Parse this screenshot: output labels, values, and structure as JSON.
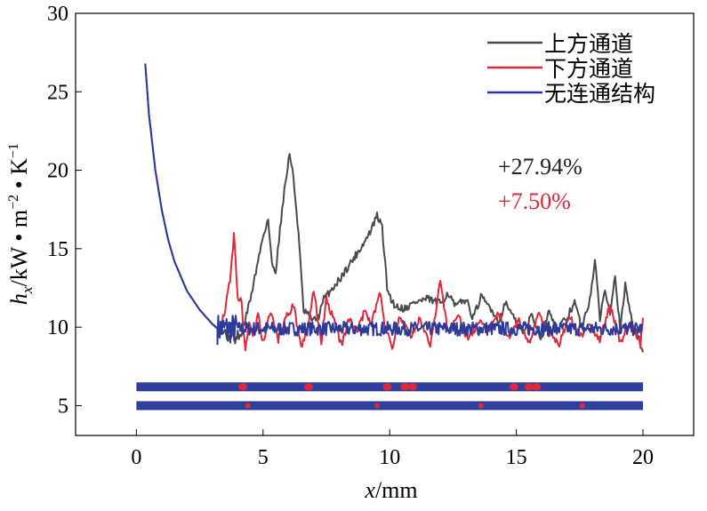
{
  "chart_data": {
    "type": "line",
    "xlabel": "x/mm",
    "ylabel": {
      "main": "h",
      "sub": "x",
      "unit": "/kW • m",
      "exp1": "−2",
      "mid": " • K",
      "exp2": "−1"
    },
    "xlim": [
      -2.4,
      22
    ],
    "ylim": [
      3.1,
      30
    ],
    "xticks": [
      0,
      5,
      10,
      15,
      20
    ],
    "yticks": [
      5,
      10,
      15,
      20,
      25,
      30
    ],
    "legend_position": "top-right",
    "annotations": [
      {
        "text": "+27.94%",
        "color": "#222222"
      },
      {
        "text": "+7.50%",
        "color": "#e0283a"
      }
    ],
    "series": [
      {
        "name": "上方通道",
        "color": "#4a4a4a",
        "x": [
          0.35,
          0.5,
          0.75,
          1,
          1.25,
          1.5,
          2,
          2.5,
          3,
          3.3,
          3.5,
          3.7,
          3.8,
          3.9,
          4.0,
          4.1,
          4.3,
          4.5,
          4.8,
          5,
          5.2,
          5.35,
          5.5,
          5.8,
          6.05,
          6.2,
          6.4,
          6.6,
          6.8,
          7,
          7.2,
          7.4,
          8,
          8.5,
          9,
          9.3,
          9.5,
          9.7,
          9.9,
          10.1,
          10.3,
          10.6,
          11,
          11.5,
          12,
          12.3,
          12.6,
          13,
          13.3,
          13.6,
          14,
          14.3,
          14.6,
          15,
          15.3,
          15.6,
          16,
          16.3,
          16.6,
          17,
          17.3,
          17.6,
          17.9,
          18.1,
          18.3,
          18.5,
          18.7,
          18.9,
          19.1,
          19.3,
          19.6,
          19.8,
          20
        ],
        "y": [
          26.8,
          23.5,
          20,
          17.5,
          15.6,
          14.2,
          12.3,
          11.1,
          10.2,
          9.8,
          9.7,
          9.1,
          10,
          9.0,
          9.6,
          9.3,
          10.5,
          11.8,
          14.2,
          15.8,
          16.9,
          14.0,
          13.6,
          18.2,
          21.1,
          19.5,
          16.0,
          11.0,
          10.8,
          10.4,
          10.7,
          11.8,
          13.0,
          14.2,
          15.4,
          16.3,
          17.1,
          16.4,
          12.5,
          11.6,
          11.3,
          11.2,
          11.6,
          11.8,
          11.5,
          12.2,
          11.3,
          11.8,
          10.6,
          11.9,
          11.2,
          10.4,
          11.6,
          10.2,
          9.6,
          10.8,
          9.3,
          11.2,
          9.8,
          10.6,
          11.6,
          9.9,
          11.8,
          14.2,
          10.6,
          12.4,
          11.0,
          13.4,
          9.8,
          12.6,
          10.2,
          9.4,
          8.4
        ]
      },
      {
        "name": "下方通道",
        "color": "#e0283a",
        "x": [
          3.3,
          3.5,
          3.7,
          3.85,
          4.0,
          4.15,
          4.3,
          4.45,
          4.6,
          4.8,
          5.0,
          5.3,
          5.6,
          5.9,
          6.2,
          6.5,
          6.8,
          7.0,
          7.3,
          7.5,
          7.8,
          8.1,
          8.4,
          8.7,
          9.0,
          9.3,
          9.6,
          9.8,
          10.1,
          10.4,
          10.8,
          11.2,
          11.6,
          12.0,
          12.3,
          12.7,
          13.1,
          13.5,
          13.9,
          14.3,
          14.7,
          15.1,
          15.5,
          15.9,
          16.3,
          16.7,
          17.1,
          17.5,
          17.9,
          18.3,
          18.7,
          19.1,
          19.5,
          19.9,
          20
        ],
        "y": [
          9.9,
          11.2,
          13.0,
          15.9,
          12.0,
          11.5,
          8.3,
          10.5,
          9.4,
          10.8,
          9.0,
          11.0,
          9.2,
          10.6,
          11.4,
          8.8,
          10.2,
          12.4,
          9.0,
          11.8,
          10.4,
          8.8,
          10.6,
          9.6,
          11.0,
          10.3,
          12.4,
          10.0,
          8.7,
          10.8,
          9.4,
          10.6,
          8.9,
          12.9,
          9.6,
          10.8,
          9.1,
          10.4,
          9.8,
          11.0,
          9.3,
          10.6,
          9.0,
          10.9,
          9.5,
          8.9,
          10.8,
          9.4,
          10.2,
          9.2,
          11.4,
          9.0,
          10.3,
          8.9,
          10.6
        ]
      },
      {
        "name": "无连通结构",
        "color": "#2e3a9a",
        "x": [
          0.35,
          0.5,
          0.75,
          1,
          1.25,
          1.5,
          2,
          2.5,
          3,
          3.2
        ],
        "y": [
          26.8,
          23.5,
          20,
          17.5,
          15.6,
          14.2,
          12.3,
          11.1,
          10.2,
          9.9
        ],
        "noise_from": 3.2,
        "noise_to": 20,
        "noise_mean": 9.9,
        "noise_amp": 0.45
      }
    ],
    "inset_strips": [
      {
        "y": 6.2,
        "dots": [
          4.2,
          6.8,
          9.9,
          10.6,
          10.9,
          14.9,
          15.5,
          15.8
        ]
      },
      {
        "y": 5.0,
        "dots": [
          4.4,
          9.5,
          13.6,
          17.6
        ]
      }
    ]
  }
}
